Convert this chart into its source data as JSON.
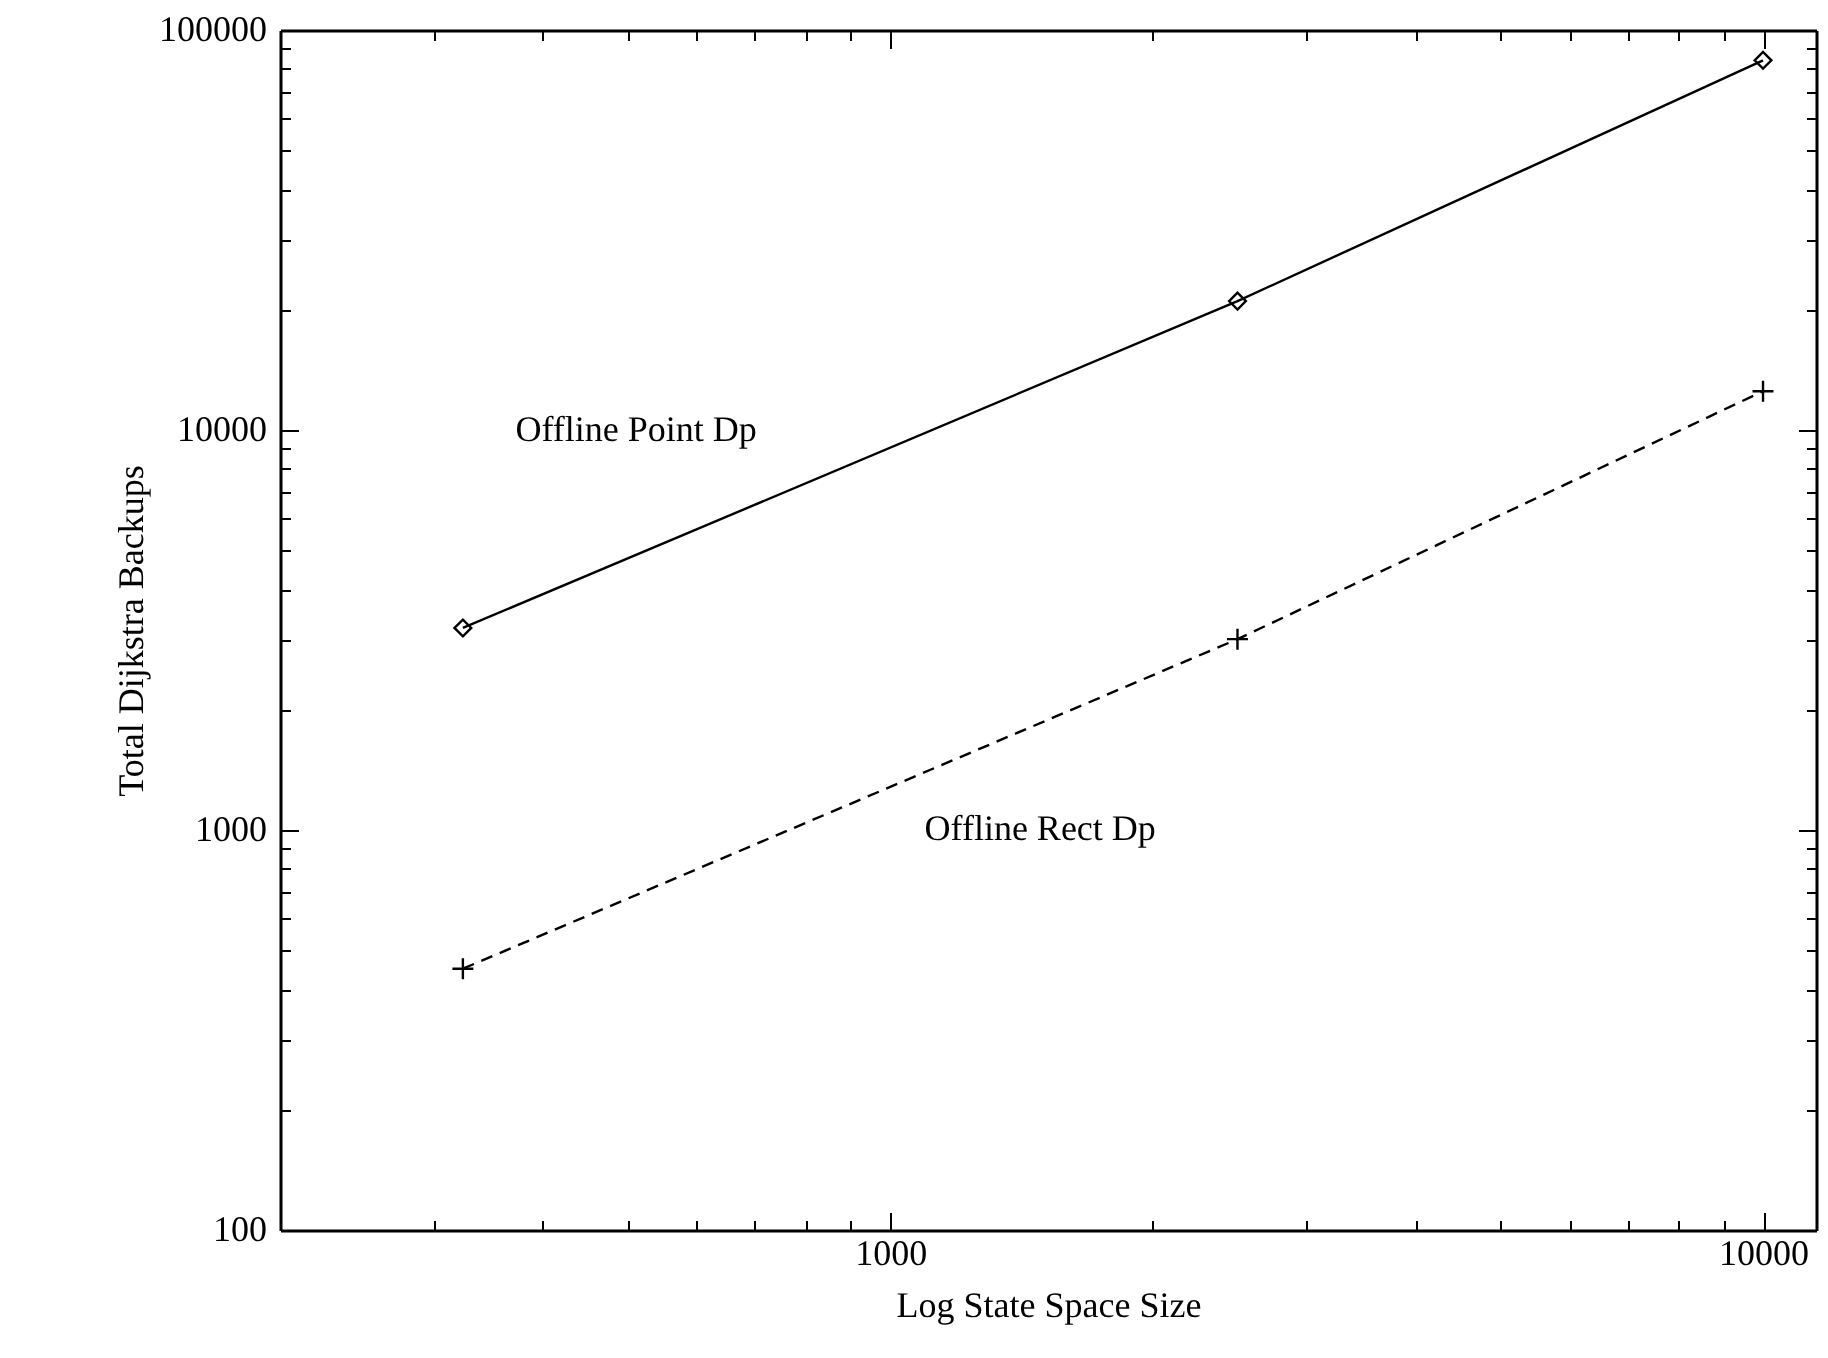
{
  "chart_data": {
    "type": "line",
    "xlabel": "Log State Space Size",
    "ylabel": "Total Dijkstra Backups",
    "log": "xy",
    "grid": false,
    "legend": false,
    "xlim": [
      200,
      11500
    ],
    "ylim": [
      100,
      100000
    ],
    "xticks": [
      {
        "value": 300,
        "label": null
      },
      {
        "value": 400,
        "label": null
      },
      {
        "value": 500,
        "label": null
      },
      {
        "value": 600,
        "label": null
      },
      {
        "value": 700,
        "label": null
      },
      {
        "value": 800,
        "label": null
      },
      {
        "value": 900,
        "label": null
      },
      1000,
      {
        "value": 2000,
        "label": null
      },
      {
        "value": 3000,
        "label": null
      },
      {
        "value": 4000,
        "label": null
      },
      {
        "value": 5000,
        "label": null
      },
      {
        "value": 6000,
        "label": null
      },
      {
        "value": 7000,
        "label": null
      },
      {
        "value": 8000,
        "label": null
      },
      {
        "value": 9000,
        "label": null
      },
      10000
    ],
    "yticks": [
      100,
      {
        "value": 200,
        "label": null
      },
      {
        "value": 300,
        "label": null
      },
      {
        "value": 400,
        "label": null
      },
      {
        "value": 500,
        "label": null
      },
      {
        "value": 600,
        "label": null
      },
      {
        "value": 700,
        "label": null
      },
      {
        "value": 800,
        "label": null
      },
      {
        "value": 900,
        "label": null
      },
      1000,
      {
        "value": 2000,
        "label": null
      },
      {
        "value": 3000,
        "label": null
      },
      {
        "value": 4000,
        "label": null
      },
      {
        "value": 5000,
        "label": null
      },
      {
        "value": 6000,
        "label": null
      },
      {
        "value": 7000,
        "label": null
      },
      {
        "value": 8000,
        "label": null
      },
      {
        "value": 9000,
        "label": null
      },
      10000,
      {
        "value": 20000,
        "label": null
      },
      {
        "value": 30000,
        "label": null
      },
      {
        "value": 40000,
        "label": null
      },
      {
        "value": 50000,
        "label": null
      },
      {
        "value": 60000,
        "label": null
      },
      {
        "value": 70000,
        "label": null
      },
      {
        "value": 80000,
        "label": null
      },
      {
        "value": 90000,
        "label": null
      },
      100000
    ],
    "x": [
      324,
      2500,
      10000
    ],
    "series": [
      {
        "name": "Offline Point Dp",
        "color": "#000000",
        "values": [
          3200,
          21000,
          84000
        ],
        "marker": "diamond",
        "line_style": "solid"
      },
      {
        "name": "Offline Rect Dp",
        "color": "#000000",
        "values": [
          450,
          3000,
          12500
        ],
        "marker": "cross",
        "line_style": "dashed"
      }
    ]
  }
}
